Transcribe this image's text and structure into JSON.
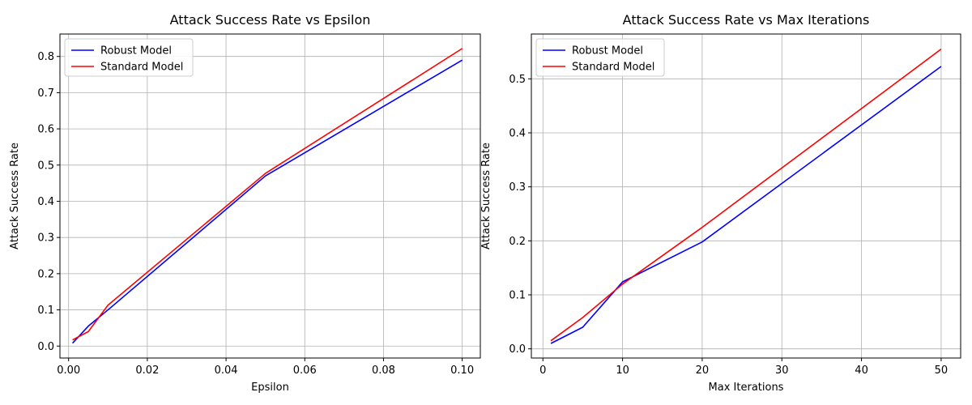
{
  "chart_data": [
    {
      "type": "line",
      "title": "Attack Success Rate vs Epsilon",
      "xlabel": "Epsilon",
      "ylabel": "Attack Success Rate",
      "xlim": [
        -0.0022,
        0.1046
      ],
      "ylim": [
        -0.033,
        0.862
      ],
      "xticks": [
        0.0,
        0.02,
        0.04,
        0.06,
        0.08,
        0.1
      ],
      "xtick_labels": [
        "0.00",
        "0.02",
        "0.04",
        "0.06",
        "0.08",
        "0.10"
      ],
      "yticks": [
        0.0,
        0.1,
        0.2,
        0.3,
        0.4,
        0.5,
        0.6,
        0.7,
        0.8
      ],
      "ytick_labels": [
        "0.0",
        "0.1",
        "0.2",
        "0.3",
        "0.4",
        "0.5",
        "0.6",
        "0.7",
        "0.8"
      ],
      "grid": true,
      "legend": "top-left",
      "x": [
        0.001,
        0.005,
        0.01,
        0.05,
        0.1
      ],
      "series": [
        {
          "name": "Robust Model",
          "color": "#0000ff",
          "values": [
            0.008,
            0.055,
            0.1,
            0.47,
            0.79
          ]
        },
        {
          "name": "Standard Model",
          "color": "#ff0000",
          "values": [
            0.017,
            0.04,
            0.113,
            0.477,
            0.822
          ]
        }
      ]
    },
    {
      "type": "line",
      "title": "Attack Success Rate vs Max Iterations",
      "xlabel": "Max Iterations",
      "ylabel": "Attack Success Rate",
      "xlim": [
        -1.45,
        52.45
      ],
      "ylim": [
        -0.017,
        0.583
      ],
      "xticks": [
        0,
        10,
        20,
        30,
        40,
        50
      ],
      "xtick_labels": [
        "0",
        "10",
        "20",
        "30",
        "40",
        "50"
      ],
      "yticks": [
        0.0,
        0.1,
        0.2,
        0.3,
        0.4,
        0.5
      ],
      "ytick_labels": [
        "0.0",
        "0.1",
        "0.2",
        "0.3",
        "0.4",
        "0.5"
      ],
      "grid": true,
      "legend": "top-left",
      "x": [
        1,
        5,
        10,
        20,
        50
      ],
      "series": [
        {
          "name": "Robust Model",
          "color": "#0000ff",
          "values": [
            0.01,
            0.04,
            0.124,
            0.198,
            0.523
          ]
        },
        {
          "name": "Standard Model",
          "color": "#ff0000",
          "values": [
            0.015,
            0.058,
            0.12,
            0.225,
            0.555
          ]
        }
      ]
    }
  ]
}
